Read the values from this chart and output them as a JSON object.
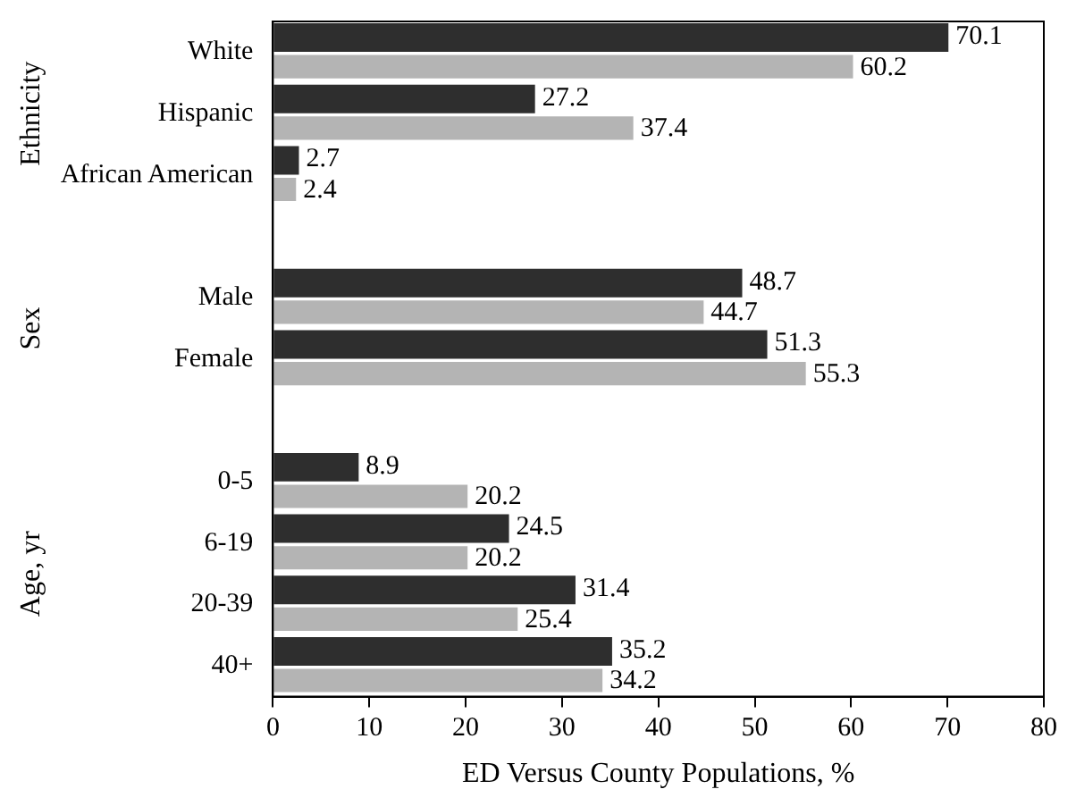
{
  "chart_data": {
    "type": "bar",
    "orientation": "horizontal",
    "xlabel": "ED Versus County Populations, %",
    "categories": [
      "White",
      "Hispanic",
      "African American",
      null,
      "Male",
      "Female",
      null,
      "0-5",
      "6-19",
      "20-39",
      "40+"
    ],
    "series": [
      {
        "color": "#2e2e2e",
        "values": [
          70.1,
          27.2,
          2.7,
          null,
          48.7,
          51.3,
          null,
          8.9,
          24.5,
          31.4,
          35.2
        ]
      },
      {
        "color": "#b4b4b4",
        "values": [
          60.2,
          37.4,
          2.4,
          null,
          44.7,
          55.3,
          null,
          20.2,
          20.2,
          25.4,
          34.2
        ]
      }
    ],
    "xlim": [
      0,
      80
    ],
    "xticks": [
      0,
      10,
      20,
      30,
      40,
      50,
      60,
      70,
      80
    ],
    "annotations": [
      "Ethnicity",
      "Sex",
      "Age, yr"
    ],
    "data_labels": true,
    "grid": false,
    "legend": false
  }
}
